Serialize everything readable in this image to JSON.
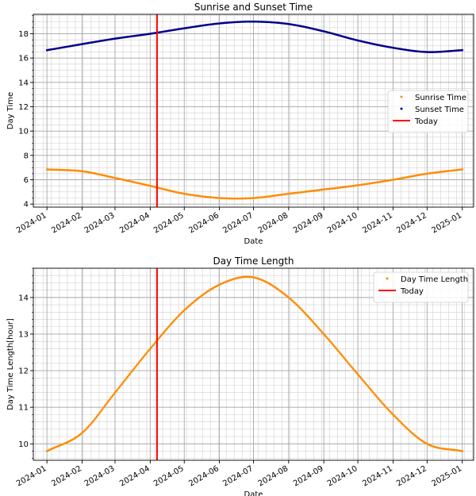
{
  "chart_data": [
    {
      "type": "line",
      "title": "Sunrise and Sunset Time",
      "xlabel": "Date",
      "ylabel": "Day Time",
      "xlim": [
        "2023-12-20",
        "2025-01-11"
      ],
      "ylim": [
        3.75,
        19.6
      ],
      "grid": true,
      "minor_grid": true,
      "legend_position": "center-right",
      "x_ticks": [
        "2024-01",
        "2024-02",
        "2024-03",
        "2024-04",
        "2024-05",
        "2024-06",
        "2024-07",
        "2024-08",
        "2024-09",
        "2024-10",
        "2024-11",
        "2024-12",
        "2025-01"
      ],
      "y_ticks": [
        4,
        6,
        8,
        10,
        12,
        14,
        16,
        18
      ],
      "today": "2024-04-07",
      "today_color": "#ff0000",
      "today_label": "Today",
      "x": [
        "2024-01-01",
        "2024-02-01",
        "2024-03-01",
        "2024-04-01",
        "2024-05-01",
        "2024-06-01",
        "2024-07-01",
        "2024-08-01",
        "2024-09-01",
        "2024-10-01",
        "2024-11-01",
        "2024-12-01",
        "2025-01-01"
      ],
      "series": [
        {
          "name": "Sunrise Time",
          "color": "#ff8c00",
          "values": [
            6.85,
            6.7,
            6.15,
            5.5,
            4.85,
            4.5,
            4.5,
            4.85,
            5.2,
            5.55,
            6.0,
            6.5,
            6.85
          ]
        },
        {
          "name": "Sunset Time",
          "color": "#00008b",
          "values": [
            16.65,
            17.15,
            17.6,
            18.0,
            18.45,
            18.85,
            19.0,
            18.8,
            18.2,
            17.45,
            16.85,
            16.5,
            16.65
          ]
        }
      ]
    },
    {
      "type": "line",
      "title": "Day Time Length",
      "xlabel": "Date",
      "ylabel": "Day Time Length[hour]",
      "xlim": [
        "2023-12-20",
        "2025-01-11"
      ],
      "ylim": [
        9.55,
        14.8
      ],
      "grid": true,
      "minor_grid": true,
      "legend_position": "top-right",
      "x_ticks": [
        "2024-01",
        "2024-02",
        "2024-03",
        "2024-04",
        "2024-05",
        "2024-06",
        "2024-07",
        "2024-08",
        "2024-09",
        "2024-10",
        "2024-11",
        "2024-12",
        "2025-01"
      ],
      "y_ticks": [
        10,
        11,
        12,
        13,
        14
      ],
      "today": "2024-04-07",
      "today_color": "#ff0000",
      "today_label": "Today",
      "x": [
        "2024-01-01",
        "2024-02-01",
        "2024-03-01",
        "2024-04-01",
        "2024-05-01",
        "2024-06-01",
        "2024-07-01",
        "2024-08-01",
        "2024-09-01",
        "2024-10-01",
        "2024-11-01",
        "2024-12-01",
        "2025-01-01"
      ],
      "series": [
        {
          "name": "Day Time Length",
          "color": "#ff8c00",
          "values": [
            9.8,
            10.3,
            11.4,
            12.6,
            13.65,
            14.35,
            14.55,
            14.0,
            13.0,
            11.9,
            10.8,
            10.0,
            9.8
          ]
        }
      ]
    }
  ]
}
